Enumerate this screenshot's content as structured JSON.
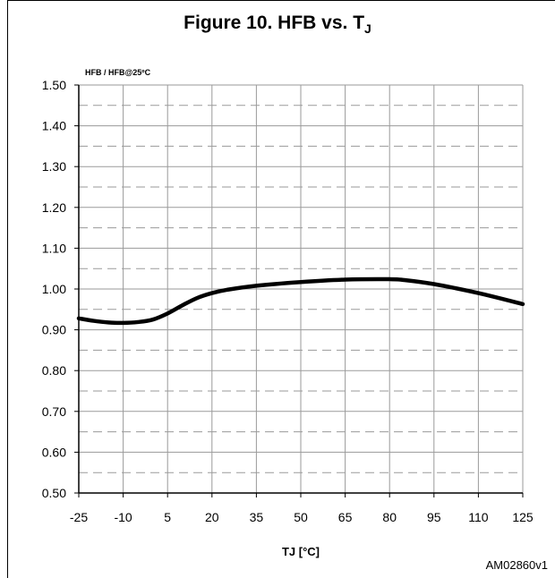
{
  "page": {
    "title_main": "Figure 10. HFB vs. T",
    "title_sub": "J",
    "code": "AM02860v1"
  },
  "chart_data": {
    "type": "line",
    "title": "Figure 10. HFB vs. TJ",
    "ylabel": "HFB / HFB@25ºC",
    "xlabel": "TJ [°C]",
    "xlim": [
      -25,
      125
    ],
    "ylim": [
      0.5,
      1.5
    ],
    "x_ticks": [
      -25,
      -10,
      5,
      20,
      35,
      50,
      65,
      80,
      95,
      110,
      125
    ],
    "y_ticks": [
      0.5,
      0.6,
      0.7,
      0.8,
      0.9,
      1.0,
      1.1,
      1.2,
      1.3,
      1.4,
      1.5
    ],
    "y_tick_labels": [
      "0.50",
      "0.60",
      "0.70",
      "0.80",
      "0.90",
      "1.00",
      "1.10",
      "1.20",
      "1.30",
      "1.40",
      "1.50"
    ],
    "x_tick_labels": [
      "-25",
      "-10",
      "5",
      "20",
      "35",
      "50",
      "65",
      "80",
      "95",
      "110",
      "125"
    ],
    "grid": true,
    "series": [
      {
        "color": "#000000",
        "x": [
          -25,
          -20,
          -15,
          -10,
          -5,
          0,
          5,
          10,
          15,
          20,
          25,
          35,
          50,
          65,
          80,
          85,
          95,
          110,
          125
        ],
        "y": [
          0.928,
          0.922,
          0.918,
          0.917,
          0.919,
          0.925,
          0.94,
          0.96,
          0.978,
          0.99,
          0.998,
          1.008,
          1.017,
          1.023,
          1.024,
          1.022,
          1.012,
          0.99,
          0.963
        ]
      }
    ]
  }
}
